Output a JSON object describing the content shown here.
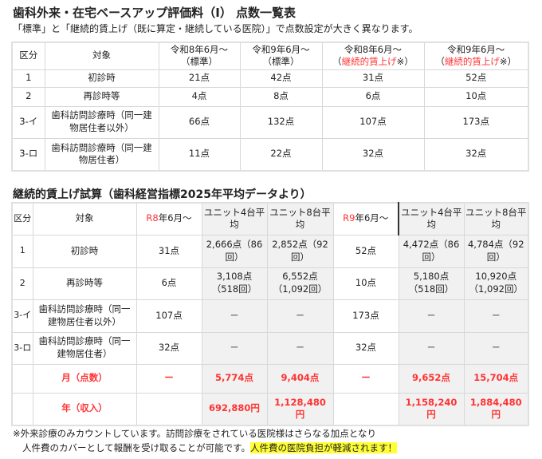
{
  "table1": {
    "title": "歯科外来・在宅ベースアップ評価料（Ⅰ） 点数一覧表",
    "subtitle": "「標準」と「継続的賃上げ（既に算定・継続している医院）」で点数設定が大きく異なります。",
    "headers": {
      "kubun": "区分",
      "target": "対象",
      "c1a": "令和8年6月～",
      "c1b": "（標準）",
      "c2a": "令和9年6月～",
      "c2b": "（標準）",
      "c3a": "令和8年6月～",
      "c3b": "継続的賃上げ",
      "c3c": "※）",
      "c4a": "令和9年6月～",
      "c4b": "継続的賃上げ",
      "c4c": "※）",
      "open": "（"
    },
    "rows": [
      {
        "kubun": "1",
        "target": "初診時",
        "v": [
          "21点",
          "42点",
          "31点",
          "52点"
        ]
      },
      {
        "kubun": "2",
        "target": "再診時等",
        "v": [
          "4点",
          "8点",
          "6点",
          "10点"
        ]
      },
      {
        "kubun": "3-イ",
        "target": "歯科訪問診療時（同一建物居住者以外）",
        "v": [
          "66点",
          "132点",
          "107点",
          "173点"
        ]
      },
      {
        "kubun": "3-ロ",
        "target": "歯科訪問診療時（同一建物居住者）",
        "v": [
          "11点",
          "22点",
          "32点",
          "32点"
        ]
      }
    ]
  },
  "table2": {
    "title": "継続的賃上げ試算（歯科経営指標2025年平均データより）",
    "headers": {
      "kubun": "区分",
      "target": "対象",
      "r8": "R8",
      "r9": "R9",
      "period": "年6月～",
      "u4": "ユニット4台平均",
      "u8": "ユニット8台平均"
    },
    "rows": [
      {
        "kubun": "1",
        "target": "初診時",
        "v": [
          "31点",
          "2,666点（86回）",
          "2,852点（92回）",
          "52点",
          "4,472点（86回）",
          "4,784点（92回）"
        ]
      },
      {
        "kubun": "2",
        "target": "再診時等",
        "v": [
          "6点",
          "3,108点（518回）",
          "6,552点（1,092回）",
          "10点",
          "5,180点（518回）",
          "10,920点（1,092回）"
        ]
      },
      {
        "kubun": "3-イ",
        "target": "歯科訪問診療時（同一建物居住者以外）",
        "v": [
          "107点",
          "－",
          "－",
          "173点",
          "－",
          "－"
        ]
      },
      {
        "kubun": "3-ロ",
        "target": "歯科訪問診療時（同一建物居住者）",
        "v": [
          "32点",
          "－",
          "－",
          "32点",
          "－",
          "－"
        ]
      },
      {
        "kubun": "",
        "target": "月（点数）",
        "v": [
          "ー",
          "5,774点",
          "9,404点",
          "ー",
          "9,652点",
          "15,704点"
        ]
      },
      {
        "kubun": "",
        "target": "年（収入）",
        "v": [
          "",
          "692,880円",
          "1,128,480円",
          "",
          "1,158,240円",
          "1,884,480円"
        ]
      }
    ]
  },
  "note": {
    "line1": "※外来診療のみカウントしています。訪問診療をされている医院様はさらなる加点となり",
    "line2": "人件費のカバーとして報酬を受け取ることが可能です。",
    "highlight": "人件費の医院負担が軽減されます！"
  },
  "colors": {
    "red": "#ff3333",
    "highlight": "#ffff33",
    "gray": "#f1f1f1"
  }
}
